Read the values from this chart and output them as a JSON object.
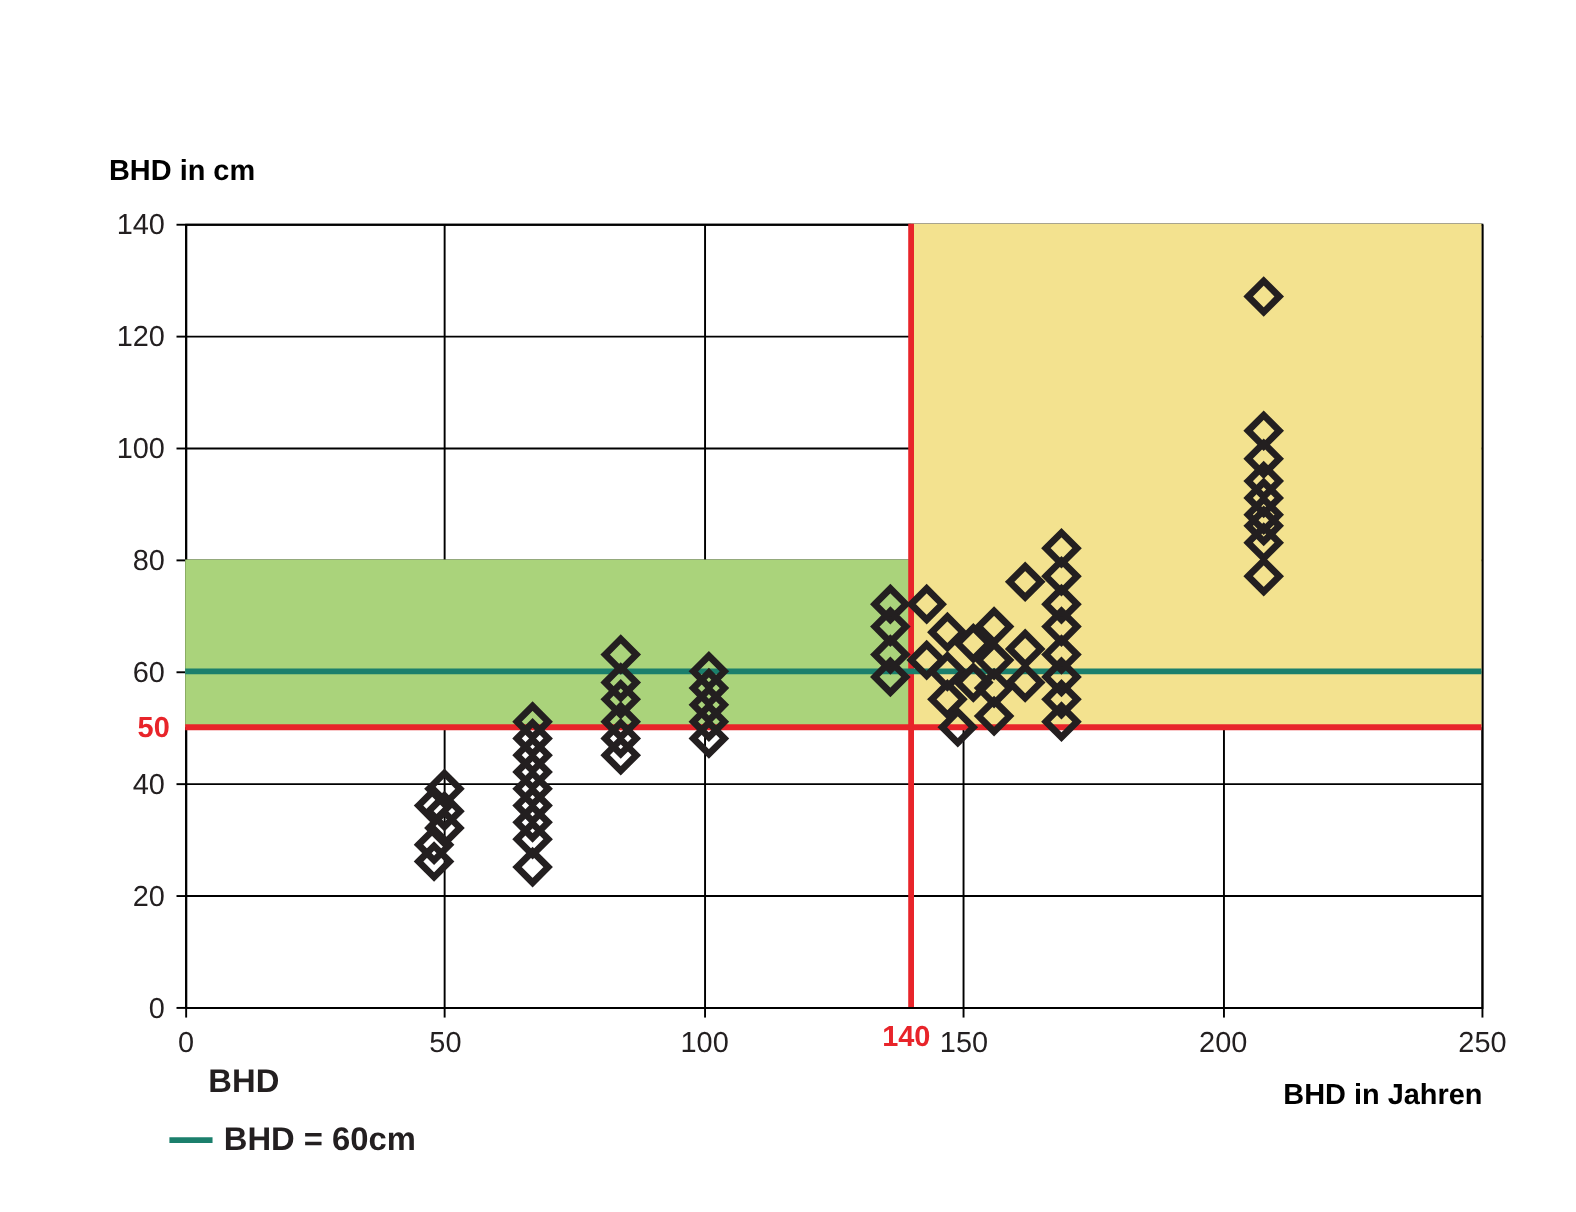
{
  "chart_data": {
    "type": "scatter",
    "xlabel": "BHD in Jahren",
    "ylabel": "BHD in cm",
    "xlim": [
      0,
      250
    ],
    "ylim": [
      0,
      140
    ],
    "xticks": [
      0,
      50,
      100,
      150,
      200,
      250
    ],
    "yticks": [
      0,
      20,
      40,
      60,
      80,
      100,
      120,
      140
    ],
    "grid": true,
    "marker": "diamond",
    "legend": "bottom left",
    "series": [
      {
        "name": "BHD",
        "color": "#231f20",
        "x": [
          48,
          48,
          48,
          50,
          50,
          50,
          67,
          67,
          67,
          67,
          67,
          67,
          67,
          67,
          67,
          84,
          84,
          84,
          84,
          84,
          84,
          101,
          101,
          101,
          101,
          101,
          136,
          136,
          136,
          136,
          143,
          143,
          147,
          147,
          147,
          149,
          152,
          152,
          156,
          156,
          156,
          156,
          162,
          162,
          162,
          169,
          169,
          169,
          169,
          169,
          169,
          169,
          169,
          208,
          208,
          208,
          208,
          208,
          208,
          208,
          208,
          208
        ],
        "values": [
          36,
          29,
          26,
          39,
          35,
          32,
          51,
          48,
          45,
          42,
          39,
          36,
          33,
          30,
          25,
          63,
          58,
          55,
          51,
          48,
          45,
          60,
          57,
          54,
          51,
          48,
          72,
          68,
          63,
          59,
          72,
          62,
          67,
          60,
          55,
          50,
          65,
          58,
          68,
          62,
          57,
          52,
          76,
          64,
          58,
          82,
          77,
          72,
          68,
          63,
          59,
          55,
          51,
          127,
          103,
          98,
          94,
          91,
          88,
          86,
          83,
          77
        ]
      }
    ],
    "ref_lines": [
      {
        "axis": "x",
        "value": 140,
        "label": "140",
        "color": "#e8242a"
      },
      {
        "axis": "y",
        "value": 50,
        "label": "50",
        "color": "#e8242a"
      },
      {
        "axis": "y",
        "value": 60,
        "label": "BHD = 60cm",
        "color": "#1b7f6c"
      }
    ],
    "bands": [
      {
        "axis": "y",
        "from": 50,
        "to": 80,
        "color": "#aad37b"
      },
      {
        "axis": "x",
        "from": 140,
        "to": 250,
        "color": "#f3e28f"
      }
    ]
  }
}
